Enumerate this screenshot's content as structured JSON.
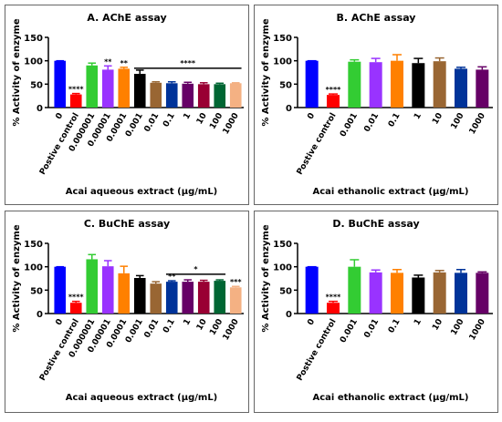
{
  "chart_data": [
    {
      "type": "bar",
      "title": "A. AChE assay",
      "xlabel": "Acai aqueous extract (µg/mL)",
      "ylabel": "% Activity of enzyme",
      "categories": [
        "0",
        "Postive control",
        "0.000001",
        "0.00001",
        "0.0001",
        "0.001",
        "0.01",
        "0.1",
        "1",
        "10",
        "100",
        "1000"
      ],
      "values": [
        100,
        28,
        90,
        81,
        83,
        72,
        53,
        52,
        51,
        50,
        50,
        52
      ],
      "errors": [
        0,
        2,
        5,
        8,
        3,
        8,
        2,
        3,
        3,
        3,
        2,
        1
      ],
      "colors": [
        "#0000ff",
        "#ff0000",
        "#33cc33",
        "#9933ff",
        "#ff8000",
        "#000000",
        "#996633",
        "#003399",
        "#660066",
        "#990033",
        "#006633",
        "#f4b183"
      ],
      "sig_labels": [
        null,
        "****",
        null,
        "**",
        "**",
        null,
        null,
        null,
        null,
        null,
        null,
        null
      ],
      "brackets": [
        {
          "from": 5,
          "to": 11,
          "y": 84,
          "label": "****"
        }
      ],
      "ylim": [
        0,
        150
      ],
      "yticks": [
        0,
        50,
        100,
        150
      ]
    },
    {
      "type": "bar",
      "title": "B. AChE assay",
      "xlabel": "Acai ethanolic extract (µg/mL)",
      "ylabel": "% Activity of enzyme",
      "categories": [
        "0",
        "Postive control",
        "0.001",
        "0.01",
        "0.1",
        "1",
        "10",
        "100",
        "1000"
      ],
      "values": [
        100,
        27,
        98,
        97,
        100,
        95,
        99,
        83,
        81
      ],
      "errors": [
        0,
        2,
        4,
        8,
        13,
        10,
        7,
        3,
        6
      ],
      "colors": [
        "#0000ff",
        "#ff0000",
        "#33cc33",
        "#9933ff",
        "#ff8000",
        "#000000",
        "#996633",
        "#003399",
        "#660066"
      ],
      "sig_labels": [
        null,
        "****",
        null,
        null,
        null,
        null,
        null,
        null,
        null
      ],
      "brackets": [],
      "ylim": [
        0,
        150
      ],
      "yticks": [
        0,
        50,
        100,
        150
      ]
    },
    {
      "type": "bar",
      "title": "C. BuChE assay",
      "xlabel": "Acai aqueous extract (µg/mL)",
      "ylabel": "% Activity of enzyme",
      "categories": [
        "0",
        "Postive control",
        "0.000001",
        "0.00001",
        "0.0001",
        "0.001",
        "0.01",
        "0.1",
        "1",
        "10",
        "100",
        "1000"
      ],
      "values": [
        100,
        23,
        116,
        101,
        86,
        76,
        64,
        68,
        68,
        68,
        70,
        56
      ],
      "errors": [
        0,
        3,
        10,
        12,
        15,
        5,
        4,
        2,
        4,
        3,
        2,
        2
      ],
      "colors": [
        "#0000ff",
        "#ff0000",
        "#33cc33",
        "#9933ff",
        "#ff8000",
        "#000000",
        "#996633",
        "#003399",
        "#660066",
        "#990033",
        "#006633",
        "#f4b183"
      ],
      "sig_labels": [
        null,
        "****",
        null,
        null,
        null,
        null,
        null,
        "**",
        null,
        null,
        null,
        "***"
      ],
      "brackets": [
        {
          "from": 7,
          "to": 10,
          "y": 84,
          "label": "*"
        }
      ],
      "ylim": [
        0,
        150
      ],
      "yticks": [
        0,
        50,
        100,
        150
      ]
    },
    {
      "type": "bar",
      "title": "D. BuChE assay",
      "xlabel": "Acai ethanolic extract (µg/mL)",
      "ylabel": "% Activity of enzyme",
      "categories": [
        "0",
        "Postive control",
        "0.001",
        "0.01",
        "0.1",
        "1",
        "10",
        "100",
        "1000"
      ],
      "values": [
        100,
        23,
        100,
        88,
        87,
        77,
        88,
        87,
        87
      ],
      "errors": [
        0,
        3,
        15,
        5,
        7,
        5,
        4,
        7,
        2
      ],
      "colors": [
        "#0000ff",
        "#ff0000",
        "#33cc33",
        "#9933ff",
        "#ff8000",
        "#000000",
        "#996633",
        "#003399",
        "#660066"
      ],
      "sig_labels": [
        null,
        "****",
        null,
        null,
        null,
        null,
        null,
        null,
        null
      ],
      "brackets": [],
      "ylim": [
        0,
        150
      ],
      "yticks": [
        0,
        50,
        100,
        150
      ]
    }
  ]
}
